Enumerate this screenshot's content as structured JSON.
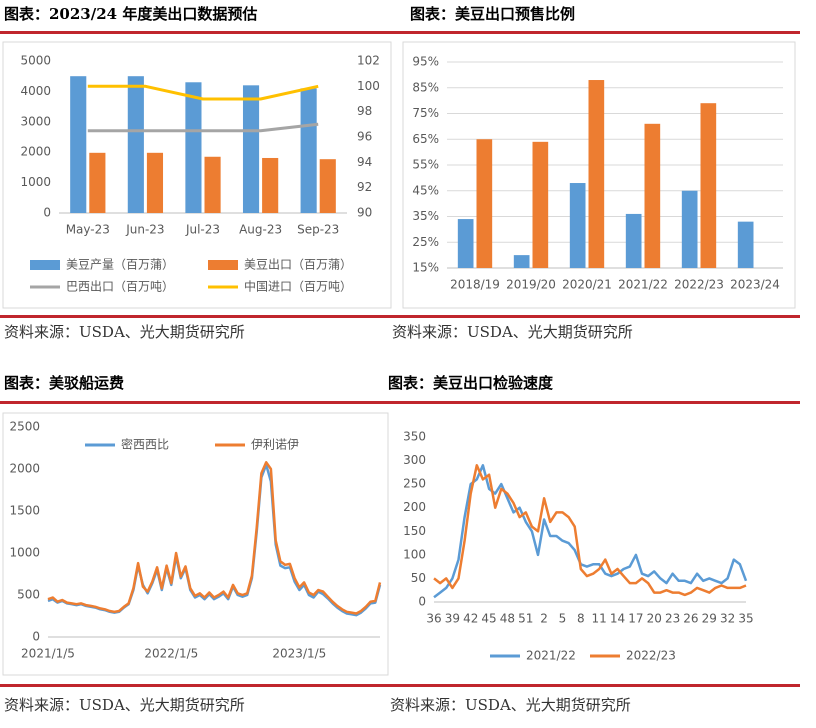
{
  "chart_data": [
    {
      "type": "bar",
      "title": "图表：2023/24 年度美出口数据预估",
      "source": "资料来源：USDA、光大期货研究所",
      "categories": [
        "May-23",
        "Jun-23",
        "Jul-23",
        "Aug-23",
        "Sep-23"
      ],
      "series": [
        {
          "name": "美豆产量（百万蒲）",
          "type": "bar",
          "color": "#5b9bd5",
          "values": [
            4500,
            4500,
            4300,
            4200,
            4100
          ]
        },
        {
          "name": "美豆出口（百万蒲）",
          "type": "bar",
          "color": "#ed7d31",
          "values": [
            1980,
            1980,
            1850,
            1810,
            1770
          ]
        },
        {
          "name": "巴西出口（百万吨）",
          "type": "line",
          "axis": "y2",
          "color": "#a5a5a5",
          "values": [
            96.5,
            96.5,
            96.5,
            96.5,
            97
          ]
        },
        {
          "name": "中国进口（百万吨）",
          "type": "line",
          "axis": "y2",
          "color": "#ffc000",
          "values": [
            100,
            100,
            99,
            99,
            100
          ]
        }
      ],
      "ylim": [
        0,
        5000
      ],
      "yticks": [
        0,
        1000,
        2000,
        3000,
        4000,
        5000
      ],
      "y2lim": [
        90,
        102
      ],
      "y2ticks": [
        90,
        92,
        94,
        96,
        98,
        100,
        102
      ],
      "grid": false
    },
    {
      "type": "bar",
      "title": "图表：美豆出口预售比例",
      "source": "资料来源：USDA、光大期货研究所",
      "categories": [
        "2018/19",
        "2019/20",
        "2020/21",
        "2021/22",
        "2022/23",
        "2023/24"
      ],
      "series": [
        {
          "color": "#5b9bd5",
          "values": [
            34,
            20,
            48,
            36,
            45,
            33
          ]
        },
        {
          "color": "#ed7d31",
          "values": [
            65,
            64,
            88,
            71,
            79,
            null
          ]
        }
      ],
      "ylim": [
        15,
        95
      ],
      "yticks": [
        {
          "value": 15,
          "label": "15%"
        },
        {
          "value": 25,
          "label": "25%"
        },
        {
          "value": 35,
          "label": "35%"
        },
        {
          "value": 45,
          "label": "45%"
        },
        {
          "value": 55,
          "label": "55%"
        },
        {
          "value": 65,
          "label": "65%"
        },
        {
          "value": 75,
          "label": "75%"
        },
        {
          "value": 85,
          "label": "85%"
        },
        {
          "value": 95,
          "label": "95%"
        }
      ],
      "grid": true
    },
    {
      "type": "line",
      "title": "图表：美驳船运费",
      "source": "资料来源：USDA、光大期货研究所",
      "categories": [
        "2021/1/5",
        null,
        null,
        null,
        null,
        null,
        null,
        null,
        null,
        null,
        null,
        null,
        null,
        null,
        null,
        null,
        null,
        null,
        null,
        null,
        null,
        null,
        null,
        null,
        null,
        null,
        "2022/1/5",
        null,
        null,
        null,
        null,
        null,
        null,
        null,
        null,
        null,
        null,
        null,
        null,
        null,
        null,
        null,
        null,
        null,
        null,
        null,
        null,
        null,
        null,
        null,
        null,
        null,
        null,
        "2023/1/5",
        null,
        null,
        null,
        null,
        null,
        null,
        null,
        null,
        null,
        null,
        null,
        null,
        null,
        null,
        null,
        null,
        null
      ],
      "series": [
        {
          "name": "密西西比",
          "color": "#5b9bd5",
          "values": [
            430,
            450,
            410,
            430,
            400,
            390,
            380,
            390,
            370,
            360,
            350,
            330,
            320,
            300,
            290,
            300,
            350,
            390,
            560,
            850,
            620,
            520,
            640,
            800,
            560,
            820,
            620,
            960,
            700,
            820,
            560,
            470,
            500,
            450,
            510,
            450,
            480,
            520,
            450,
            600,
            500,
            480,
            500,
            700,
            1250,
            1900,
            2050,
            1850,
            1100,
            850,
            820,
            830,
            660,
            560,
            620,
            500,
            470,
            540,
            510,
            460,
            400,
            350,
            310,
            280,
            270,
            260,
            290,
            340,
            400,
            410,
            620
          ]
        },
        {
          "name": "伊利诺伊",
          "color": "#ed7d31",
          "values": [
            450,
            470,
            420,
            440,
            410,
            400,
            390,
            400,
            380,
            370,
            360,
            340,
            330,
            310,
            300,
            310,
            360,
            400,
            580,
            880,
            600,
            540,
            660,
            830,
            580,
            850,
            640,
            1000,
            720,
            840,
            580,
            490,
            520,
            470,
            530,
            470,
            500,
            540,
            470,
            620,
            520,
            500,
            520,
            730,
            1300,
            1950,
            2080,
            2000,
            1150,
            900,
            860,
            870,
            700,
            590,
            650,
            530,
            500,
            560,
            540,
            480,
            420,
            370,
            330,
            300,
            290,
            280,
            310,
            360,
            420,
            430,
            650
          ]
        }
      ],
      "ylim": [
        0,
        2500
      ],
      "yticks": [
        0,
        500,
        1000,
        1500,
        2000,
        2500
      ],
      "grid": false
    },
    {
      "type": "line",
      "title": "图表：美豆出口检验速度",
      "source": "资料来源：USDA、光大期货研究所",
      "categories": [
        "36",
        null,
        null,
        "39",
        null,
        null,
        "42",
        null,
        null,
        "45",
        null,
        null,
        "48",
        null,
        null,
        "51",
        null,
        null,
        "2",
        null,
        null,
        "5",
        null,
        null,
        "8",
        null,
        null,
        "11",
        null,
        null,
        "14",
        null,
        null,
        "17",
        null,
        null,
        "20",
        null,
        null,
        "23",
        null,
        null,
        "26",
        null,
        null,
        "29",
        null,
        null,
        "32",
        null,
        null,
        "35"
      ],
      "series": [
        {
          "name": "2021/22",
          "color": "#5b9bd5",
          "values": [
            10,
            20,
            30,
            50,
            90,
            180,
            250,
            260,
            290,
            240,
            230,
            250,
            220,
            190,
            200,
            170,
            150,
            100,
            175,
            140,
            140,
            130,
            125,
            110,
            80,
            75,
            80,
            80,
            60,
            55,
            60,
            70,
            75,
            100,
            60,
            55,
            65,
            50,
            40,
            60,
            45,
            45,
            40,
            60,
            45,
            50,
            45,
            40,
            50,
            90,
            80,
            45
          ]
        },
        {
          "name": "2022/23",
          "color": "#ed7d31",
          "values": [
            50,
            40,
            50,
            30,
            50,
            130,
            230,
            290,
            260,
            270,
            200,
            240,
            230,
            210,
            180,
            190,
            160,
            150,
            220,
            170,
            190,
            190,
            180,
            160,
            70,
            55,
            60,
            70,
            90,
            60,
            70,
            55,
            40,
            40,
            50,
            40,
            20,
            20,
            25,
            20,
            20,
            15,
            20,
            30,
            25,
            20,
            30,
            35,
            30,
            30,
            30,
            35
          ]
        }
      ],
      "ylim": [
        0,
        350
      ],
      "yticks": [
        0,
        50,
        100,
        150,
        200,
        250,
        300,
        350
      ],
      "grid": false
    }
  ]
}
